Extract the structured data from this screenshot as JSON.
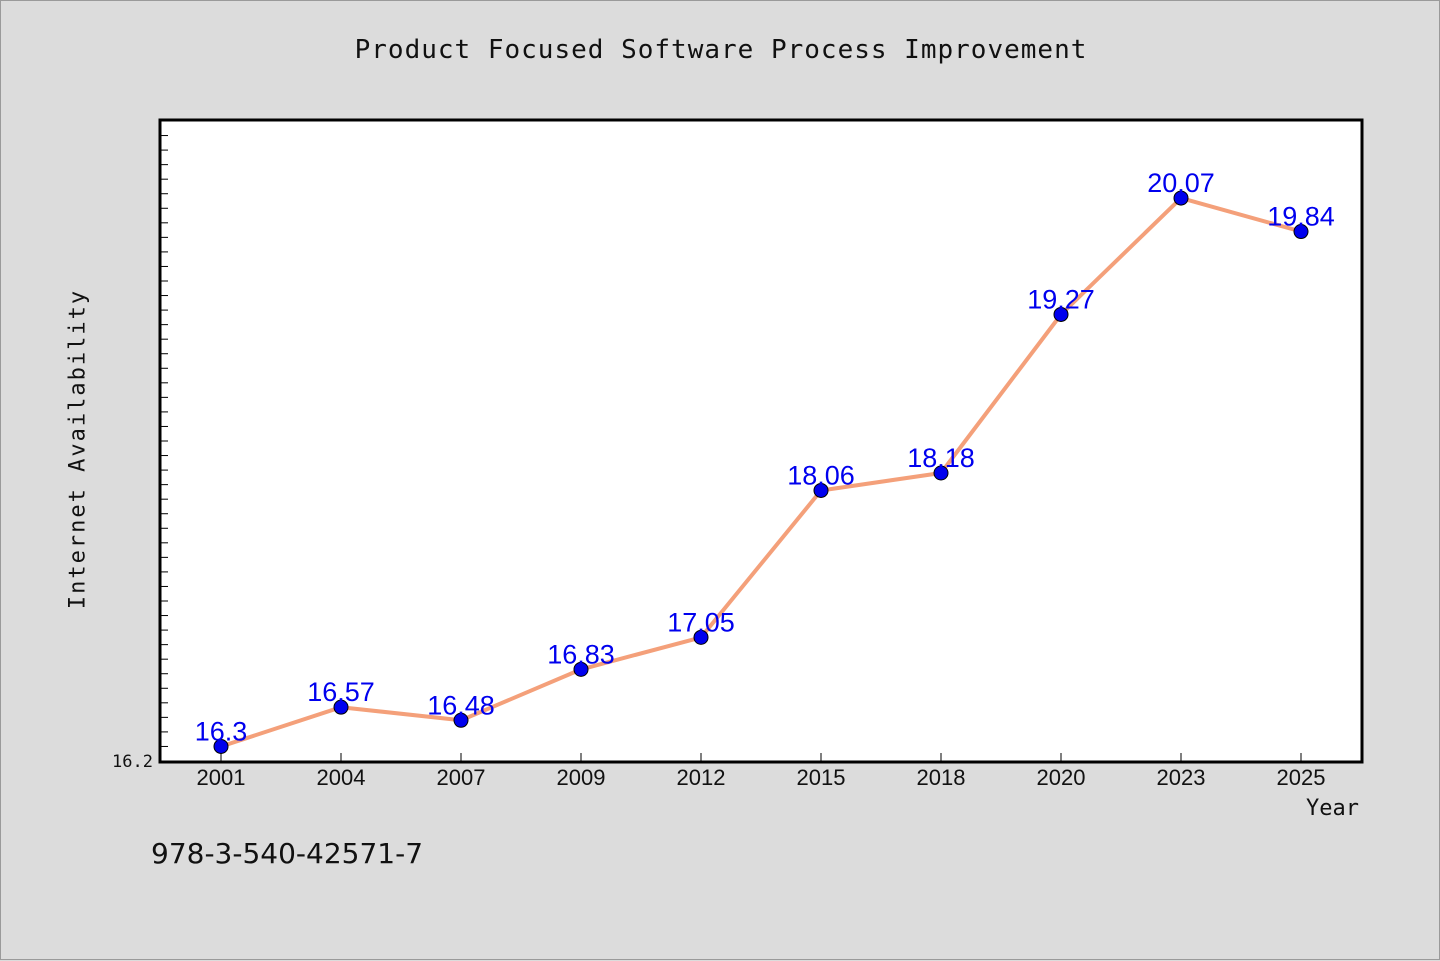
{
  "chart_data": {
    "type": "line",
    "title": "Product Focused Software Process Improvement",
    "xlabel": "Year",
    "ylabel": "Internet Availability",
    "categories": [
      "2001",
      "2004",
      "2007",
      "2009",
      "2012",
      "2015",
      "2018",
      "2020",
      "2023",
      "2025"
    ],
    "series": [
      {
        "values": [
          16.3,
          16.57,
          16.48,
          16.83,
          17.05,
          18.06,
          18.18,
          19.27,
          20.07,
          19.84
        ],
        "labels": [
          "16.3",
          "16.57",
          "16.48",
          "16.83",
          "17.05",
          "18.06",
          "18.18",
          "19.27",
          "20.07",
          "19.84"
        ],
        "line_color": "#f4a07a",
        "marker_color": "#0000ee",
        "label_color": "#0000ee"
      }
    ],
    "ylim": [
      16.2,
      20.6
    ],
    "y_tick_label": "16.2",
    "grid": false,
    "legend": "none"
  },
  "footer": {
    "isbn": "978-3-540-42571-7"
  },
  "colors": {
    "background": "#dcdcdc",
    "plot_background": "#ffffff",
    "axis": "#000000"
  }
}
